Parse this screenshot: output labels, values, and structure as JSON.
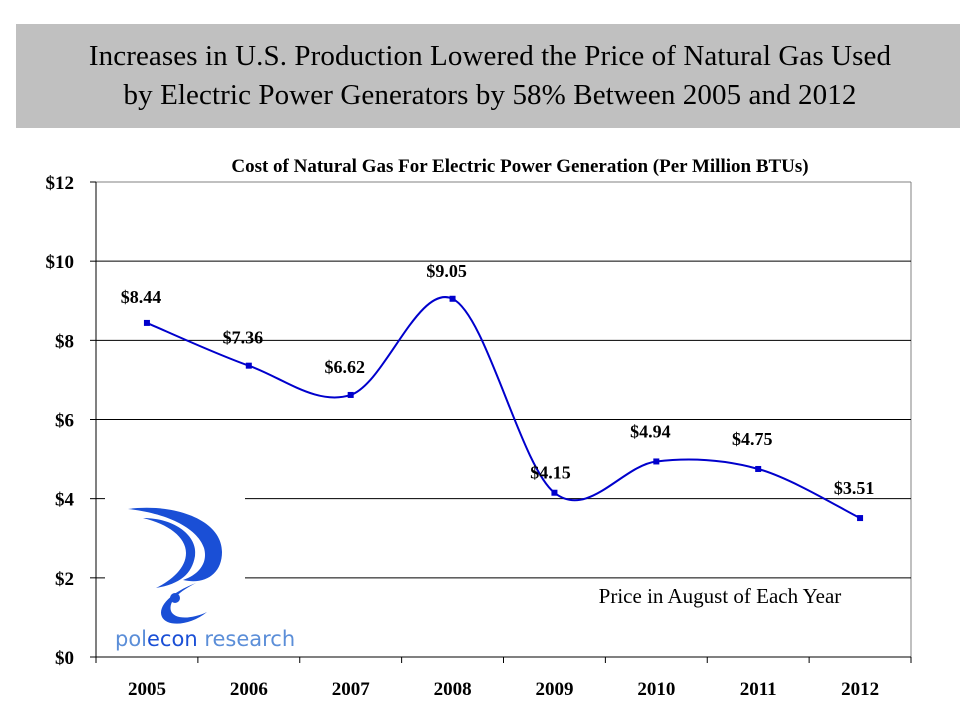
{
  "banner": {
    "line1": "Increases in U.S. Production Lowered the Price of Natural Gas Used",
    "line2": "by Electric Power Generators by 58% Between 2005 and 2012"
  },
  "logo": {
    "name": "polecon research",
    "part1": "pol",
    "part2": "econ",
    "part3": " research",
    "colors": {
      "mark": "#1a4fd6",
      "text_light": "#5b8ed8",
      "text_dark": "#1a4fd6"
    }
  },
  "colors": {
    "line": "#0000cc",
    "banner_bg": "#c0c0c0",
    "grid": "#000000"
  },
  "chart_data": {
    "type": "line",
    "title": "Cost of Natural Gas For Electric Power Generation (Per Million BTUs)",
    "xlabel": "",
    "ylabel": "",
    "categories": [
      "2005",
      "2006",
      "2007",
      "2008",
      "2009",
      "2010",
      "2011",
      "2012"
    ],
    "series": [
      {
        "name": "Price",
        "values": [
          8.44,
          7.36,
          6.62,
          9.05,
          4.15,
          4.94,
          4.75,
          3.51
        ],
        "labels": [
          "$8.44",
          "$7.36",
          "$6.62",
          "$9.05",
          "$4.15",
          "$4.94",
          "$4.75",
          "$3.51"
        ]
      }
    ],
    "ylim": [
      0,
      12
    ],
    "yticks": [
      0,
      2,
      4,
      6,
      8,
      10,
      12
    ],
    "ytick_labels": [
      "$0",
      "$2",
      "$4",
      "$6",
      "$8",
      "$10",
      "$12"
    ],
    "grid": "horizontal",
    "smooth": true,
    "legend": "none",
    "annotation": "Price in August of Each Year"
  }
}
